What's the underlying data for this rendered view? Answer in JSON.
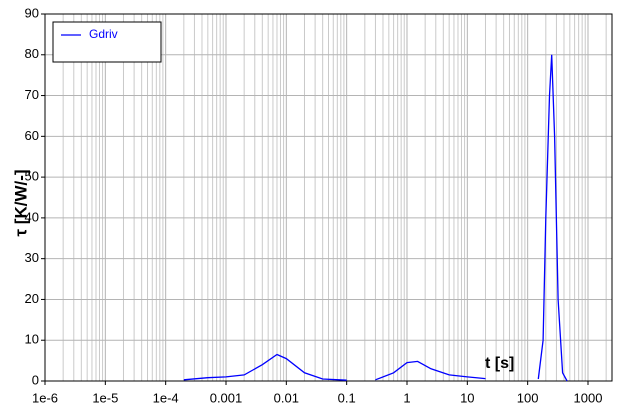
{
  "chart_data": {
    "type": "line",
    "y_label": "τ [K/W/-]",
    "annotation": "t [s]",
    "x": [
      0.0002,
      0.0005,
      0.001,
      0.002,
      0.004,
      0.007,
      0.01,
      0.02,
      0.04,
      0.1,
      0.15,
      0.3,
      0.6,
      1,
      1.5,
      2.5,
      5,
      10,
      20,
      50,
      150,
      180,
      200,
      230,
      250,
      280,
      320,
      380,
      450
    ],
    "series": [
      {
        "name": "Gdriv",
        "color": "#0000ff",
        "values": [
          0.3,
          0.8,
          1,
          1.5,
          4,
          6.5,
          5.5,
          2,
          0.5,
          0.2,
          null,
          0.3,
          2,
          4.5,
          4.8,
          3,
          1.5,
          1,
          0.6,
          null,
          0.5,
          10,
          40,
          70,
          80,
          60,
          20,
          2,
          0
        ]
      }
    ],
    "xscale": "log",
    "xlim": [
      1e-06,
      2500
    ],
    "xticks": [
      {
        "value": 1e-06,
        "label": "1e-6"
      },
      {
        "value": 1e-05,
        "label": "1e-5"
      },
      {
        "value": 0.0001,
        "label": "1e-4"
      },
      0.001,
      0.01,
      0.1,
      1,
      10,
      100,
      1000
    ],
    "ylim": [
      0,
      90
    ],
    "yticks": [
      0,
      10,
      20,
      30,
      40,
      50,
      60,
      70,
      80,
      90
    ],
    "grid": true,
    "minor_grid": true,
    "legend": "upper left"
  }
}
